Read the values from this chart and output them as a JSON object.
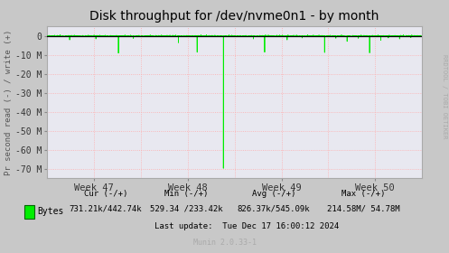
{
  "title": "Disk throughput for /dev/nvme0n1 - by month",
  "ylabel": "Pr second read (-) / write (+)",
  "background_color": "#c8c8c8",
  "plot_bg_color": "#e8e8f0",
  "grid_color_h": "#ffaaaa",
  "grid_color_v": "#ffaaaa",
  "line_color": "#00ee00",
  "ylim": [
    -75000000,
    5000000
  ],
  "yticks": [
    0,
    -10000000,
    -20000000,
    -30000000,
    -40000000,
    -50000000,
    -60000000,
    -70000000
  ],
  "ytick_labels": [
    "0",
    "-10 M",
    "-20 M",
    "-30 M",
    "-40 M",
    "-50 M",
    "-60 M",
    "-70 M"
  ],
  "xtick_labels": [
    "Week 47",
    "Week 48",
    "Week 49",
    "Week 50"
  ],
  "title_fontsize": 10,
  "axis_fontsize": 7,
  "legend_text": "Bytes",
  "cur_text": "Cur (-/+)",
  "min_text": "Min (-/+)",
  "avg_text": "Avg (-/+)",
  "max_text": "Max (-/+)",
  "cur_val": "731.21k/442.74k",
  "min_val": "529.34 /233.42k",
  "avg_val": "826.37k/545.09k",
  "max_val": "214.58M/ 54.78M",
  "last_update": "Last update:  Tue Dec 17 16:00:12 2024",
  "munin_ver": "Munin 2.0.33-1",
  "rrdtool_text": "RRDTOOL / TOBI OETIKER"
}
